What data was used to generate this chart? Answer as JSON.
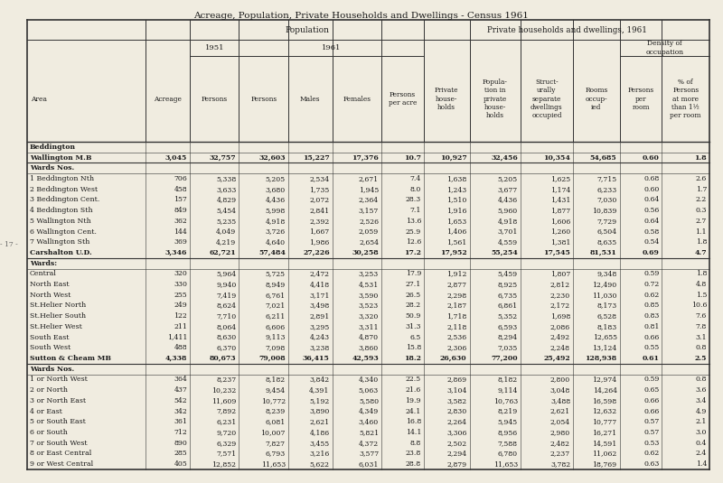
{
  "title": "Acreage, Population, Private Households and Dwellings - Census 1961",
  "rows": [
    [
      "Beddington",
      "",
      "",
      "",
      "",
      "",
      "",
      "",
      "",
      "",
      "",
      "",
      ""
    ],
    [
      "Wallington M.B",
      "3,045",
      "32,757",
      "32,603",
      "15,227",
      "17,376",
      "10.7",
      "10,927",
      "32,456",
      "10,354",
      "54,685",
      "0.60",
      "1.8"
    ],
    [
      "Wards Nos.",
      "",
      "",
      "",
      "",
      "",
      "",
      "",
      "",
      "",
      "",
      "",
      ""
    ],
    [
      "1 Beddington Nth",
      "706",
      "5,338",
      "5,205",
      "2,534",
      "2,671",
      "7.4",
      "1,638",
      "5,205",
      "1,625",
      "7,715",
      "0.68",
      "2.6"
    ],
    [
      "2 Beddington West",
      "458",
      "3,633",
      "3,680",
      "1,735",
      "1,945",
      "8.0",
      "1,243",
      "3,677",
      "1,174",
      "6,233",
      "0.60",
      "1.7"
    ],
    [
      "3 Beddington Cent.",
      "157",
      "4,829",
      "4,436",
      "2,072",
      "2,364",
      "28.3",
      "1,510",
      "4,436",
      "1,431",
      "7,030",
      "0.64",
      "2.2"
    ],
    [
      "4 Beddington Sth",
      "849",
      "5,454",
      "5,998",
      "2,841",
      "3,157",
      "7.1",
      "1,916",
      "5,960",
      "1,877",
      "10,839",
      "0.56",
      "0.3"
    ],
    [
      "5 Wallington Nth",
      "362",
      "5,235",
      "4,918",
      "2,392",
      "2,526",
      "13.6",
      "1,653",
      "4,918",
      "1,606",
      "7,729",
      "0.64",
      "2.7"
    ],
    [
      "6 Wallington Cent.",
      "144",
      "4,049",
      "3,726",
      "1,667",
      "2,059",
      "25.9",
      "1,406",
      "3,701",
      "1,260",
      "6,504",
      "0.58",
      "1.1"
    ],
    [
      "7 Wallington Sth",
      "369",
      "4,219",
      "4,640",
      "1,986",
      "2,654",
      "12.6",
      "1,561",
      "4,559",
      "1,381",
      "8,635",
      "0.54",
      "1.8"
    ],
    [
      "Carshalton U.D.",
      "3,346",
      "62,721",
      "57,484",
      "27,226",
      "30,258",
      "17.2",
      "17,952",
      "55,254",
      "17,545",
      "81,531",
      "0.69",
      "4.7"
    ],
    [
      "Wards:",
      "",
      "",
      "",
      "",
      "",
      "",
      "",
      "",
      "",
      "",
      "",
      ""
    ],
    [
      "Central",
      "320",
      "5,964",
      "5,725",
      "2,472",
      "3,253",
      "17.9",
      "1,912",
      "5,459",
      "1,807",
      "9,348",
      "0.59",
      "1.8"
    ],
    [
      "North East",
      "330",
      "9,940",
      "8,949",
      "4,418",
      "4,531",
      "27.1",
      "2,877",
      "8,925",
      "2,812",
      "12,490",
      "0.72",
      "4.8"
    ],
    [
      "North West",
      "255",
      "7,419",
      "6,761",
      "3,171",
      "3,590",
      "26.5",
      "2,298",
      "6,735",
      "2,230",
      "11,030",
      "0.62",
      "1.5"
    ],
    [
      "St.Helier North",
      "249",
      "8,624",
      "7,021",
      "3,498",
      "3,523",
      "28.2",
      "2,187",
      "6,861",
      "2,172",
      "8,173",
      "0.85",
      "10.6"
    ],
    [
      "St.Helier South",
      "122",
      "7,710",
      "6,211",
      "2,891",
      "3,320",
      "50.9",
      "1,718",
      "5,352",
      "1,698",
      "6,528",
      "0.83",
      "7.6"
    ],
    [
      "St.Helier West",
      "211",
      "8,064",
      "6,606",
      "3,295",
      "3,311",
      "31.3",
      "2,118",
      "6,593",
      "2,086",
      "8,183",
      "0.81",
      "7.8"
    ],
    [
      "South East",
      "1,411",
      "8,630",
      "9,113",
      "4,243",
      "4,870",
      "6.5",
      "2,536",
      "8,294",
      "2,492",
      "12,655",
      "0.66",
      "3.1"
    ],
    [
      "South West",
      "488",
      "6,370",
      "7,098",
      "3,238",
      "3,860",
      "15.8",
      "2,306",
      "7,035",
      "2,248",
      "13,124",
      "0.55",
      "0.8"
    ],
    [
      "Sutton & Cheam MB",
      "4,338",
      "80,673",
      "79,008",
      "36,415",
      "42,593",
      "18.2",
      "26,630",
      "77,200",
      "25,492",
      "128,938",
      "0.61",
      "2.5"
    ],
    [
      "Wards Nos.",
      "",
      "",
      "",
      "",
      "",
      "",
      "",
      "",
      "",
      "",
      "",
      ""
    ],
    [
      "1 or North West",
      "364",
      "8,237",
      "8,182",
      "3,842",
      "4,340",
      "22.5",
      "2,869",
      "8,182",
      "2,800",
      "12,974",
      "0.59",
      "0.8"
    ],
    [
      "2 or North",
      "437",
      "10,232",
      "9,454",
      "4,391",
      "5,063",
      "21.6",
      "3,104",
      "9,114",
      "3,048",
      "14,264",
      "0.65",
      "3.6"
    ],
    [
      "3 or North East",
      "542",
      "11,609",
      "10,772",
      "5,192",
      "5,580",
      "19.9",
      "3,582",
      "10,763",
      "3,488",
      "16,598",
      "0.66",
      "3.4"
    ],
    [
      "4 or East",
      "342",
      "7,892",
      "8,239",
      "3,890",
      "4,349",
      "24.1",
      "2,830",
      "8,219",
      "2,621",
      "12,632",
      "0.66",
      "4.9"
    ],
    [
      "5 or South East",
      "361",
      "6,231",
      "6,081",
      "2,621",
      "3,460",
      "16.8",
      "2,264",
      "5,945",
      "2,054",
      "10,777",
      "0.57",
      "2.1"
    ],
    [
      "6 or South",
      "712",
      "9,720",
      "10,007",
      "4,186",
      "5,821",
      "14.1",
      "3,306",
      "8,956",
      "2,980",
      "16,271",
      "0.57",
      "3.0"
    ],
    [
      "7 or South West",
      "890",
      "6,329",
      "7,827",
      "3,455",
      "4,372",
      "8.8",
      "2,502",
      "7,588",
      "2,482",
      "14,591",
      "0.53",
      "0.4"
    ],
    [
      "8 or East Central",
      "285",
      "7,571",
      "6,793",
      "3,216",
      "3,577",
      "23.8",
      "2,294",
      "6,780",
      "2,237",
      "11,062",
      "0.62",
      "2.4"
    ],
    [
      "9 or West Central",
      "405",
      "12,852",
      "11,653",
      "5,622",
      "6,031",
      "28.8",
      "2,879",
      "11,653",
      "3,782",
      "18,769",
      "0.63",
      "1.4"
    ]
  ],
  "section_rows": [
    0,
    2,
    11,
    21
  ],
  "bold_data_rows": [
    1,
    10,
    20
  ],
  "bg_color": "#f0ece0",
  "text_color": "#1a1a1a",
  "line_color": "#444444"
}
